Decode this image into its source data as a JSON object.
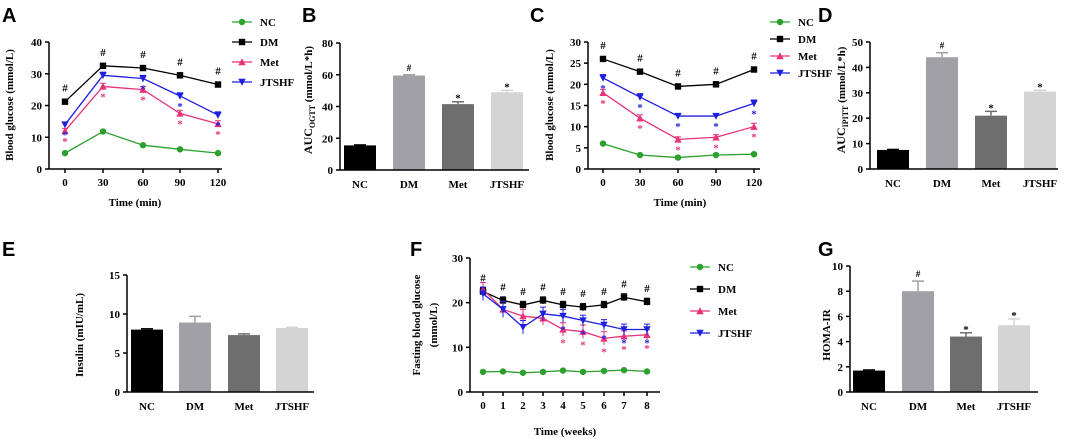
{
  "colors": {
    "NC": "#2ca02c",
    "DM": "#000000",
    "Met": "#e8327a",
    "JTSHF": "#1f1fe0",
    "bar_NC": "#000000",
    "bar_DM": "#a0a0a6",
    "bar_Met": "#6e6e6e",
    "bar_JTSHF": "#d4d4d4"
  },
  "chart_data": [
    {
      "panel": "A",
      "type": "line",
      "xlabel": "Time (min)",
      "ylabel": "Blood glucose (mmol/L)",
      "x": [
        0,
        30,
        60,
        90,
        120
      ],
      "x_ticks": [
        "0",
        "30",
        "60",
        "90",
        "120"
      ],
      "ylim": [
        0,
        40
      ],
      "y_ticks": [
        "0",
        "10",
        "20",
        "30",
        "40"
      ],
      "series": [
        {
          "name": "NC",
          "marker": "circle",
          "values": [
            5,
            11.8,
            7.5,
            6.2,
            5
          ],
          "err": [
            0.3,
            0.4,
            0.3,
            0.3,
            0.3
          ],
          "sig": [
            "",
            "",
            "",
            "",
            ""
          ]
        },
        {
          "name": "DM",
          "marker": "square",
          "values": [
            21.2,
            32.5,
            31.8,
            29.5,
            26.6
          ],
          "err": [
            0.6,
            0.6,
            0.7,
            0.8,
            0.8
          ],
          "sig": [
            "#",
            "#",
            "#",
            "#",
            "#"
          ]
        },
        {
          "name": "Met",
          "marker": "triangle-up",
          "values": [
            12,
            26,
            25,
            17.5,
            14.2
          ],
          "err": [
            0.8,
            1,
            1,
            1,
            1
          ],
          "sig": [
            "*",
            "*",
            "*",
            "*",
            "*"
          ]
        },
        {
          "name": "JTSHF",
          "marker": "triangle-down",
          "values": [
            14,
            29.5,
            28.5,
            23,
            17
          ],
          "err": [
            0.8,
            1,
            1,
            1,
            1
          ],
          "sig": [
            "*",
            "",
            "*",
            "*",
            "*"
          ]
        }
      ],
      "legend": [
        "NC",
        "DM",
        "Met",
        "JTSHF"
      ]
    },
    {
      "panel": "B",
      "type": "bar",
      "ylabel_main": "AUC",
      "ylabel_sub": "OGTT",
      "ylabel_unit": " (mmol/L*h)",
      "categories": [
        "NC",
        "DM",
        "Met",
        "JTSHF"
      ],
      "values": [
        15.5,
        59.5,
        41.5,
        49
      ],
      "err": [
        0.3,
        0.5,
        1.5,
        1.2
      ],
      "sig": [
        "",
        "#",
        "*",
        "*"
      ],
      "ylim": [
        0,
        80
      ],
      "y_ticks": [
        "0",
        "20",
        "40",
        "60",
        "80"
      ]
    },
    {
      "panel": "C",
      "type": "line",
      "xlabel": "Time (min)",
      "ylabel": "Blood glucose (mmol/L)",
      "x": [
        0,
        30,
        60,
        90,
        120
      ],
      "x_ticks": [
        "0",
        "30",
        "60",
        "90",
        "120"
      ],
      "ylim": [
        0,
        30
      ],
      "y_ticks": [
        "0",
        "5",
        "10",
        "15",
        "20",
        "25",
        "30"
      ],
      "series": [
        {
          "name": "NC",
          "marker": "circle",
          "values": [
            6,
            3.3,
            2.7,
            3.3,
            3.5
          ],
          "err": [
            0.3,
            0.3,
            0.3,
            0.3,
            0.3
          ],
          "sig": [
            "",
            "",
            "",
            "",
            ""
          ]
        },
        {
          "name": "DM",
          "marker": "square",
          "values": [
            26,
            23,
            19.5,
            20,
            23.5
          ],
          "err": [
            0.5,
            0.6,
            0.6,
            0.6,
            0.6
          ],
          "sig": [
            "#",
            "#",
            "#",
            "#",
            "#"
          ]
        },
        {
          "name": "Met",
          "marker": "triangle-up",
          "values": [
            18,
            12,
            7,
            7.5,
            10
          ],
          "err": [
            0.8,
            0.8,
            0.6,
            0.6,
            0.8
          ],
          "sig": [
            "*",
            "*",
            "*",
            "*",
            "*"
          ]
        },
        {
          "name": "JTSHF",
          "marker": "triangle-down",
          "values": [
            21.5,
            17,
            12.5,
            12.5,
            15.5
          ],
          "err": [
            0.8,
            0.8,
            0.6,
            0.6,
            0.8
          ],
          "sig": [
            "*",
            "*",
            "*",
            "*",
            "*"
          ]
        }
      ],
      "legend": [
        "NC",
        "DM",
        "Met",
        "JTSHF"
      ]
    },
    {
      "panel": "D",
      "type": "bar",
      "ylabel_main": "AUC",
      "ylabel_sub": "IPITT",
      "ylabel_unit": " (mmol/L*h)",
      "categories": [
        "NC",
        "DM",
        "Met",
        "JTSHF"
      ],
      "values": [
        7.5,
        44,
        21,
        30.5
      ],
      "err": [
        0.2,
        1.8,
        1.7,
        0.5
      ],
      "sig": [
        "",
        "#",
        "*",
        "*"
      ],
      "ylim": [
        0,
        50
      ],
      "y_ticks": [
        "0",
        "10",
        "20",
        "30",
        "40",
        "50"
      ]
    },
    {
      "panel": "E",
      "type": "bar",
      "ylabel_main": "Insulin (mIU/mL)",
      "categories": [
        "NC",
        "DM",
        "Met",
        "JTSHF"
      ],
      "values": [
        8,
        8.9,
        7.3,
        8.2
      ],
      "err": [
        0.1,
        0.8,
        0.15,
        0.1
      ],
      "sig": [
        "",
        "",
        "",
        ""
      ],
      "ylim": [
        0,
        15
      ],
      "y_ticks": [
        "0",
        "5",
        "10",
        "15"
      ]
    },
    {
      "panel": "F",
      "type": "line",
      "xlabel": "Time (weeks)",
      "ylabel": "Fasting blood glucose",
      "ylabel2": "(mmol/L)",
      "x": [
        0,
        1,
        2,
        3,
        4,
        5,
        6,
        7,
        8
      ],
      "x_ticks": [
        "0",
        "1",
        "2",
        "3",
        "4",
        "5",
        "6",
        "7",
        "8"
      ],
      "ylim": [
        0,
        30
      ],
      "y_ticks": [
        "0",
        "10",
        "20",
        "30"
      ],
      "series": [
        {
          "name": "NC",
          "marker": "circle",
          "values": [
            4.5,
            4.6,
            4.3,
            4.5,
            4.8,
            4.5,
            4.7,
            4.9,
            4.6
          ],
          "err": [
            0.2,
            0.2,
            0.2,
            0.2,
            0.2,
            0.2,
            0.2,
            0.2,
            0.2
          ],
          "sig": [
            "",
            "",
            "",
            "",
            "",
            "",
            "",
            "",
            ""
          ]
        },
        {
          "name": "DM",
          "marker": "square",
          "values": [
            22.5,
            20.5,
            19.5,
            20.5,
            19.5,
            19,
            19.5,
            21.2,
            20.2
          ],
          "err": [
            0.8,
            0.8,
            0.8,
            0.8,
            0.8,
            0.8,
            0.8,
            0.8,
            0.8
          ],
          "sig": [
            "#",
            "#",
            "#",
            "#",
            "#",
            "#",
            "#",
            "#",
            "#"
          ]
        },
        {
          "name": "Met",
          "marker": "triangle-up",
          "values": [
            23,
            18.5,
            17,
            16.5,
            14,
            13.5,
            12,
            12.5,
            12.8
          ],
          "err": [
            1.5,
            1.8,
            1.5,
            1.5,
            1.5,
            1.5,
            1.5,
            1.2,
            1.2
          ],
          "sig": [
            "",
            "",
            "",
            "",
            "*",
            "*",
            "*",
            "*",
            "*"
          ]
        },
        {
          "name": "JTSHF",
          "marker": "triangle-down",
          "values": [
            22,
            18.5,
            14.5,
            17.5,
            17,
            16,
            15,
            14,
            14
          ],
          "err": [
            1.5,
            1.8,
            1.5,
            1.5,
            1.5,
            1.2,
            1.2,
            1.2,
            1.2
          ],
          "sig": [
            "",
            "",
            "",
            "",
            "*",
            "*",
            "*",
            "*",
            "*"
          ]
        }
      ],
      "legend": [
        "NC",
        "DM",
        "Met",
        "JTSHF"
      ]
    },
    {
      "panel": "G",
      "type": "bar",
      "ylabel_main": "HOMA-IR",
      "categories": [
        "NC",
        "DM",
        "Met",
        "JTSHF"
      ],
      "values": [
        1.7,
        8.0,
        4.4,
        5.3
      ],
      "err": [
        0.05,
        0.8,
        0.3,
        0.5
      ],
      "sig": [
        "",
        "#",
        "*",
        "*"
      ],
      "ylim": [
        0,
        10
      ],
      "y_ticks": [
        "0",
        "2",
        "4",
        "6",
        "8",
        "10"
      ]
    }
  ]
}
